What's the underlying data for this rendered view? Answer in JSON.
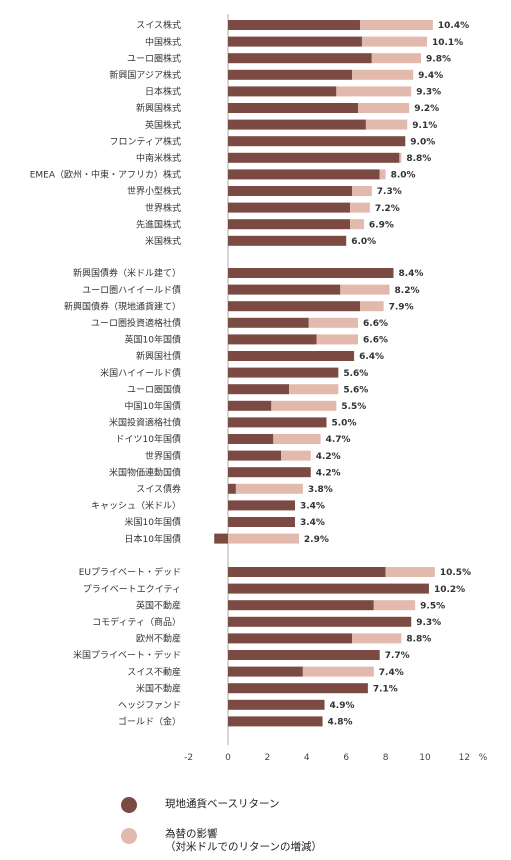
{
  "chart_data": {
    "type": "bar",
    "orientation": "horizontal",
    "stacked": true,
    "xlim": [
      -2,
      12
    ],
    "xticks": [
      "-2",
      "0",
      "2",
      "4",
      "6",
      "8",
      "10",
      "12"
    ],
    "xunit": "%",
    "series": [
      {
        "name": "現地通貨ベースリターン",
        "color": "#7b4a42"
      },
      {
        "name": "為替の影響\n（対米ドルでのリターンの増減）",
        "color": "#e2b9ad"
      }
    ],
    "groups": [
      {
        "items": [
          {
            "label": "スイス株式",
            "local": 6.7,
            "fx": 3.7,
            "total": "10.4%"
          },
          {
            "label": "中国株式",
            "local": 6.8,
            "fx": 3.3,
            "total": "10.1%"
          },
          {
            "label": "ユーロ圏株式",
            "local": 7.3,
            "fx": 2.5,
            "total": "9.8%"
          },
          {
            "label": "新興国アジア株式",
            "local": 6.3,
            "fx": 3.1,
            "total": "9.4%"
          },
          {
            "label": "日本株式",
            "local": 5.5,
            "fx": 3.8,
            "total": "9.3%"
          },
          {
            "label": "新興国株式",
            "local": 6.6,
            "fx": 2.6,
            "total": "9.2%"
          },
          {
            "label": "英国株式",
            "local": 7.0,
            "fx": 2.1,
            "total": "9.1%"
          },
          {
            "label": "フロンティア株式",
            "local": 9.0,
            "fx": 0.0,
            "total": "9.0%"
          },
          {
            "label": "中南米株式",
            "local": 8.7,
            "fx": 0.1,
            "total": "8.8%"
          },
          {
            "label": "EMEA（欧州・中東・アフリカ）株式",
            "local": 7.7,
            "fx": 0.3,
            "total": "8.0%"
          },
          {
            "label": "世界小型株式",
            "local": 6.3,
            "fx": 1.0,
            "total": "7.3%"
          },
          {
            "label": "世界株式",
            "local": 6.2,
            "fx": 1.0,
            "total": "7.2%"
          },
          {
            "label": "先進国株式",
            "local": 6.2,
            "fx": 0.7,
            "total": "6.9%"
          },
          {
            "label": "米国株式",
            "local": 6.0,
            "fx": 0.0,
            "total": "6.0%"
          }
        ]
      },
      {
        "items": [
          {
            "label": "新興国債券（米ドル建て）",
            "local": 8.4,
            "fx": 0.0,
            "total": "8.4%"
          },
          {
            "label": "ユーロ圏ハイイールド債",
            "local": 5.7,
            "fx": 2.5,
            "total": "8.2%"
          },
          {
            "label": "新興国債券（現地通貨建て）",
            "local": 6.7,
            "fx": 1.2,
            "total": "7.9%"
          },
          {
            "label": "ユーロ圏投資適格社債",
            "local": 4.1,
            "fx": 2.5,
            "total": "6.6%"
          },
          {
            "label": "英国10年国債",
            "local": 4.5,
            "fx": 2.1,
            "total": "6.6%"
          },
          {
            "label": "新興国社債",
            "local": 6.4,
            "fx": 0.0,
            "total": "6.4%"
          },
          {
            "label": "米国ハイイールド債",
            "local": 5.6,
            "fx": 0.0,
            "total": "5.6%"
          },
          {
            "label": "ユーロ圏国債",
            "local": 3.1,
            "fx": 2.5,
            "total": "5.6%"
          },
          {
            "label": "中国10年国債",
            "local": 2.2,
            "fx": 3.3,
            "total": "5.5%"
          },
          {
            "label": "米国投資適格社債",
            "local": 5.0,
            "fx": 0.0,
            "total": "5.0%"
          },
          {
            "label": "ドイツ10年国債",
            "local": 2.3,
            "fx": 2.4,
            "total": "4.7%"
          },
          {
            "label": "世界国債",
            "local": 2.7,
            "fx": 1.5,
            "total": "4.2%"
          },
          {
            "label": "米国物価連動国債",
            "local": 4.2,
            "fx": 0.0,
            "total": "4.2%"
          },
          {
            "label": "スイス債券",
            "local": 0.4,
            "fx": 3.4,
            "total": "3.8%"
          },
          {
            "label": "キャッシュ（米ドル）",
            "local": 3.4,
            "fx": 0.0,
            "total": "3.4%"
          },
          {
            "label": "米国10年国債",
            "local": 3.4,
            "fx": 0.0,
            "total": "3.4%"
          },
          {
            "label": "日本10年国債",
            "local": -0.7,
            "fx": 3.6,
            "total": "2.9%"
          }
        ]
      },
      {
        "items": [
          {
            "label": "EUプライベート・デッド",
            "local": 8.0,
            "fx": 2.5,
            "total": "10.5%"
          },
          {
            "label": "プライベートエクイティ",
            "local": 10.2,
            "fx": 0.0,
            "total": "10.2%"
          },
          {
            "label": "英国不動産",
            "local": 7.4,
            "fx": 2.1,
            "total": "9.5%"
          },
          {
            "label": "コモディティ（商品）",
            "local": 9.3,
            "fx": 0.0,
            "total": "9.3%"
          },
          {
            "label": "欧州不動産",
            "local": 6.3,
            "fx": 2.5,
            "total": "8.8%"
          },
          {
            "label": "米国プライベート・デッド",
            "local": 7.7,
            "fx": 0.0,
            "total": "7.7%"
          },
          {
            "label": "スイス不動産",
            "local": 3.8,
            "fx": 3.6,
            "total": "7.4%"
          },
          {
            "label": "米国不動産",
            "local": 7.1,
            "fx": 0.0,
            "total": "7.1%"
          },
          {
            "label": "ヘッジファンド",
            "local": 4.9,
            "fx": 0.0,
            "total": "4.9%"
          },
          {
            "label": "ゴールド（金）",
            "local": 4.8,
            "fx": 0.0,
            "total": "4.8%"
          }
        ]
      }
    ]
  }
}
